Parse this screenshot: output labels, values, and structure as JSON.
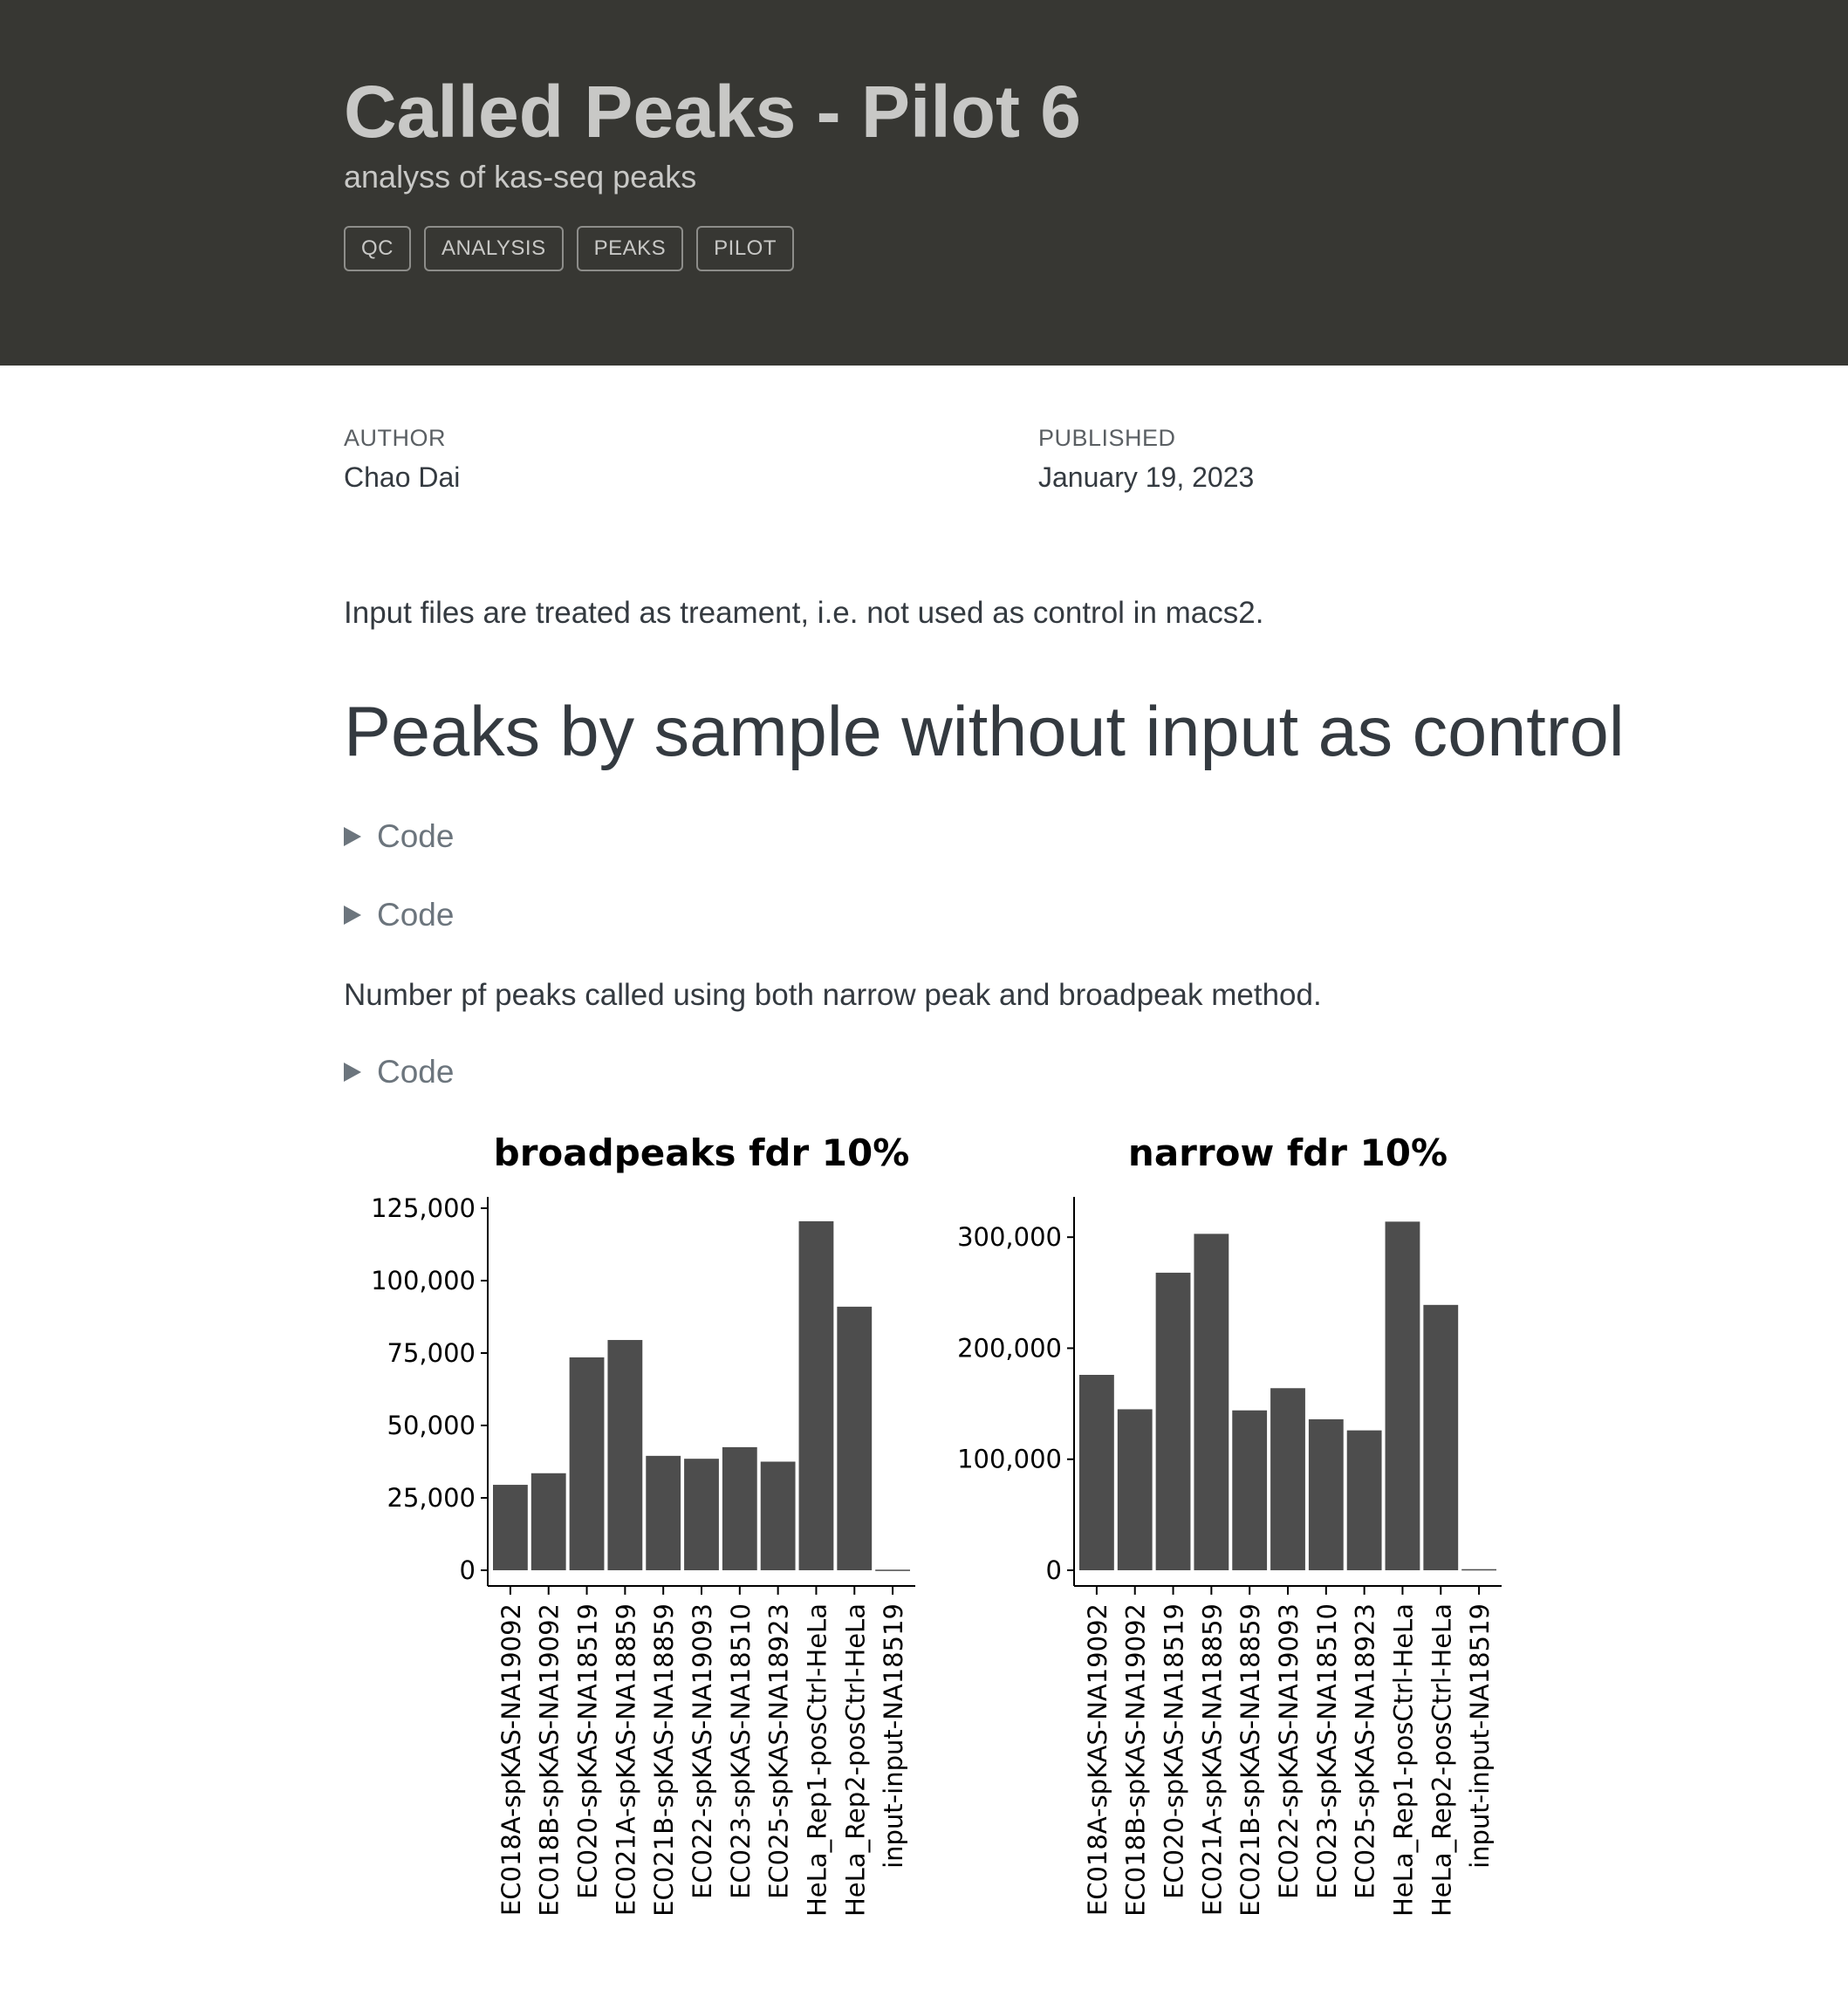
{
  "header": {
    "title": "Called Peaks - Pilot 6",
    "subtitle": "analyss of kas-seq peaks",
    "tags": [
      "QC",
      "ANALYSIS",
      "PEAKS",
      "PILOT"
    ]
  },
  "meta": {
    "author_label": "AUTHOR",
    "author": "Chao Dai",
    "published_label": "PUBLISHED",
    "published": "January 19, 2023"
  },
  "content": {
    "intro": "Input files are treated as treament, i.e. not used as control in macs2.",
    "section_heading": "Peaks by sample without input as control",
    "code_label": "Code",
    "peaks_note": "Number pf peaks called using both narrow peak and broadpeak method."
  },
  "chart_data": [
    {
      "type": "bar",
      "title": "broadpeaks fdr 10%",
      "xlabel": "",
      "ylabel": "",
      "categories": [
        "EC018A-spKAS-NA19092",
        "EC018B-spKAS-NA19092",
        "EC020-spKAS-NA18519",
        "EC021A-spKAS-NA18859",
        "EC021B-spKAS-NA18859",
        "EC022-spKAS-NA19093",
        "EC023-spKAS-NA18510",
        "EC025-spKAS-NA18923",
        "HeLa_Rep1-posCtrl-HeLa",
        "HeLa_Rep2-posCtrl-HeLa",
        "input-input-NA18519"
      ],
      "values": [
        29500,
        33500,
        73500,
        79500,
        39500,
        38500,
        42500,
        37500,
        120500,
        91000,
        200
      ],
      "yticks": [
        0,
        25000,
        50000,
        75000,
        100000,
        125000
      ],
      "ytick_labels": [
        "0",
        "25,000",
        "50,000",
        "75,000",
        "100,000",
        "125,000"
      ],
      "ylim": [
        0,
        126500
      ],
      "bar_color": "#4d4d4d",
      "grid": false,
      "legend": "none"
    },
    {
      "type": "bar",
      "title": "narrow fdr 10%",
      "xlabel": "",
      "ylabel": "",
      "categories": [
        "EC018A-spKAS-NA19092",
        "EC018B-spKAS-NA19092",
        "EC020-spKAS-NA18519",
        "EC021A-spKAS-NA18859",
        "EC021B-spKAS-NA18859",
        "EC022-spKAS-NA19093",
        "EC023-spKAS-NA18510",
        "EC025-spKAS-NA18923",
        "HeLa_Rep1-posCtrl-HeLa",
        "HeLa_Rep2-posCtrl-HeLa",
        "input-input-NA18519"
      ],
      "values": [
        176000,
        145000,
        268000,
        303000,
        144000,
        164000,
        136000,
        126000,
        314000,
        239000,
        1000
      ],
      "yticks": [
        0,
        100000,
        200000,
        300000
      ],
      "ytick_labels": [
        "0",
        "100,000",
        "200,000",
        "300,000"
      ],
      "ylim": [
        0,
        330000
      ],
      "bar_color": "#4d4d4d",
      "grid": false,
      "legend": "none"
    }
  ]
}
